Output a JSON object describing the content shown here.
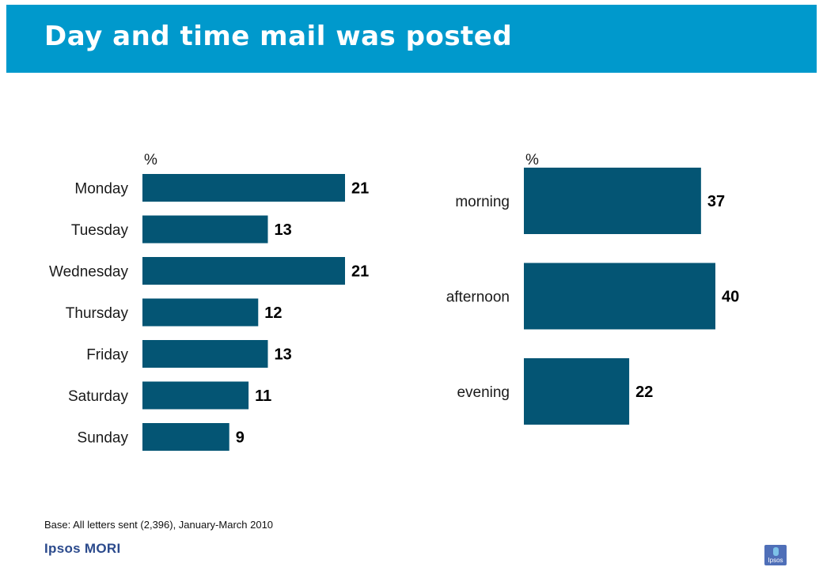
{
  "header": {
    "title": "Day and time mail was posted"
  },
  "colors": {
    "header_bg": "#0099cc",
    "bar": "#045574",
    "brand": "#2b4a8c"
  },
  "chart_data": [
    {
      "type": "bar",
      "orientation": "horizontal",
      "unit_label": "%",
      "categories": [
        "Monday",
        "Tuesday",
        "Wednesday",
        "Thursday",
        "Friday",
        "Saturday",
        "Sunday"
      ],
      "values": [
        21,
        13,
        21,
        12,
        13,
        11,
        9
      ],
      "value_labels": [
        "21",
        "13",
        "21",
        "12",
        "13",
        "11",
        "9"
      ],
      "xlim": [
        0,
        21
      ],
      "grid": false
    },
    {
      "type": "bar",
      "orientation": "horizontal",
      "unit_label": "%",
      "categories": [
        "morning",
        "afternoon",
        "evening"
      ],
      "values": [
        37,
        40,
        22
      ],
      "value_labels": [
        "37",
        "40",
        "22"
      ],
      "xlim": [
        0,
        40
      ],
      "grid": false
    }
  ],
  "footer": {
    "base_note": "Base: All letters sent (2,396), January-March 2010",
    "brand": "Ipsos MORI",
    "logo_text": "Ipsos"
  }
}
